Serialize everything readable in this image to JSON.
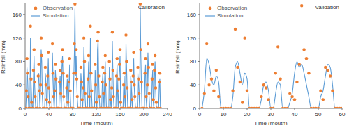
{
  "chart_data": [
    {
      "type": "line",
      "title": "Calibration",
      "x_label": "Time (mouth)",
      "y_label": "Rainfall (mm)",
      "legend": "top-left",
      "xlim": [
        0,
        240
      ],
      "xticks": [
        0,
        40,
        80,
        120,
        160,
        200,
        240
      ],
      "ylim": [
        0,
        180
      ],
      "yticks": [
        0,
        40,
        80,
        120,
        160
      ],
      "x": [
        1,
        2,
        3,
        4,
        5,
        6,
        7,
        8,
        9,
        10,
        11,
        12,
        13,
        14,
        15,
        16,
        17,
        18,
        19,
        20,
        21,
        22,
        23,
        24,
        25,
        26,
        27,
        28,
        29,
        30,
        31,
        32,
        33,
        34,
        35,
        36,
        37,
        38,
        39,
        40,
        41,
        42,
        43,
        44,
        45,
        46,
        47,
        48,
        49,
        50,
        51,
        52,
        53,
        54,
        55,
        56,
        57,
        58,
        59,
        60,
        61,
        62,
        63,
        64,
        65,
        66,
        67,
        68,
        69,
        70,
        71,
        72,
        73,
        74,
        75,
        76,
        77,
        78,
        79,
        80,
        81,
        82,
        83,
        84,
        85,
        86,
        87,
        88,
        89,
        90,
        91,
        92,
        93,
        94,
        95,
        96,
        97,
        98,
        99,
        100,
        101,
        102,
        103,
        104,
        105,
        106,
        107,
        108,
        109,
        110,
        111,
        112,
        113,
        114,
        115,
        116,
        117,
        118,
        119,
        120,
        121,
        122,
        123,
        124,
        125,
        126,
        127,
        128,
        129,
        130,
        131,
        132,
        133,
        134,
        135,
        136,
        137,
        138,
        139,
        140,
        141,
        142,
        143,
        144,
        145,
        146,
        147,
        148,
        149,
        150,
        151,
        152,
        153,
        154,
        155,
        156,
        157,
        158,
        159,
        160,
        161,
        162,
        163,
        164,
        165,
        166,
        167,
        168,
        169,
        170,
        171,
        172,
        173,
        174,
        175,
        176,
        177,
        178,
        179,
        180,
        181,
        182,
        183,
        184,
        185,
        186,
        187,
        188,
        189,
        190,
        191,
        192,
        193,
        194,
        195,
        196,
        197,
        198,
        199,
        200,
        201,
        202,
        203,
        204,
        205,
        206,
        207,
        208,
        209,
        210,
        211,
        212,
        213,
        214,
        215,
        216,
        217,
        218,
        219,
        220,
        221,
        222,
        223,
        224,
        225,
        226,
        227,
        228
      ],
      "series": [
        {
          "name": "Observation",
          "type": "scatter",
          "marker": "circle",
          "color": "#ed7d31",
          "values": [
            0,
            30,
            85,
            60,
            20,
            0,
            0,
            0,
            140,
            50,
            10,
            0,
            0,
            65,
            100,
            45,
            20,
            0,
            0,
            0,
            0,
            55,
            75,
            30,
            0,
            40,
            120,
            90,
            25,
            0,
            0,
            0,
            0,
            70,
            40,
            15,
            0,
            55,
            95,
            35,
            10,
            0,
            0,
            0,
            0,
            110,
            60,
            20,
            0,
            30,
            75,
            50,
            0,
            0,
            0,
            0,
            0,
            45,
            65,
            25,
            0,
            80,
            100,
            60,
            20,
            0,
            0,
            0,
            0,
            35,
            55,
            10,
            0,
            45,
            85,
            30,
            0,
            0,
            0,
            0,
            0,
            60,
            110,
            178,
            60,
            100,
            50,
            20,
            0,
            0,
            0,
            0,
            0,
            70,
            45,
            15,
            0,
            35,
            120,
            80,
            25,
            0,
            0,
            0,
            0,
            50,
            90,
            20,
            0,
            140,
            60,
            30,
            0,
            0,
            0,
            0,
            0,
            75,
            40,
            10,
            0,
            115,
            130,
            55,
            20,
            0,
            0,
            0,
            0,
            45,
            70,
            25,
            0,
            60,
            90,
            40,
            0,
            0,
            0,
            0,
            0,
            80,
            50,
            15,
            0,
            35,
            130,
            65,
            20,
            0,
            0,
            0,
            0,
            55,
            85,
            30,
            0,
            50,
            75,
            100,
            10,
            0,
            0,
            0,
            0,
            40,
            60,
            20,
            0,
            125,
            80,
            35,
            0,
            0,
            0,
            0,
            0,
            65,
            45,
            15,
            0,
            55,
            95,
            40,
            20,
            0,
            0,
            0,
            0,
            70,
            50,
            25,
            0,
            178,
            100,
            45,
            0,
            0,
            0,
            0,
            0,
            60,
            85,
            20,
            0,
            40,
            110,
            70,
            25,
            0,
            0,
            0,
            0,
            50,
            75,
            15,
            0,
            65,
            90,
            35,
            10,
            0,
            0,
            0,
            0,
            45,
            60,
            0
          ]
        },
        {
          "name": "Simulation",
          "type": "line",
          "line_style": "solid",
          "color": "#5b9bd5",
          "values": [
            0,
            20,
            70,
            55,
            25,
            0,
            0,
            0,
            120,
            45,
            15,
            0,
            0,
            50,
            90,
            40,
            15,
            0,
            0,
            0,
            0,
            45,
            60,
            25,
            0,
            35,
            100,
            80,
            20,
            0,
            0,
            0,
            0,
            60,
            45,
            10,
            0,
            45,
            85,
            40,
            5,
            0,
            0,
            0,
            0,
            95,
            55,
            15,
            0,
            25,
            65,
            45,
            0,
            0,
            0,
            0,
            0,
            40,
            55,
            20,
            0,
            70,
            90,
            50,
            15,
            0,
            0,
            0,
            0,
            30,
            50,
            5,
            0,
            40,
            75,
            25,
            0,
            0,
            0,
            0,
            0,
            50,
            95,
            170,
            55,
            90,
            45,
            15,
            0,
            0,
            0,
            0,
            0,
            60,
            40,
            10,
            0,
            30,
            105,
            70,
            20,
            0,
            0,
            0,
            0,
            45,
            80,
            15,
            0,
            120,
            55,
            25,
            0,
            0,
            0,
            0,
            0,
            65,
            35,
            5,
            0,
            100,
            115,
            50,
            15,
            0,
            0,
            0,
            0,
            40,
            60,
            20,
            0,
            50,
            80,
            35,
            0,
            0,
            0,
            0,
            0,
            70,
            45,
            10,
            0,
            30,
            115,
            60,
            15,
            0,
            0,
            0,
            0,
            50,
            75,
            25,
            0,
            45,
            65,
            90,
            5,
            0,
            0,
            0,
            0,
            35,
            55,
            15,
            0,
            110,
            70,
            30,
            0,
            0,
            0,
            0,
            0,
            55,
            40,
            10,
            0,
            50,
            85,
            35,
            15,
            0,
            0,
            0,
            0,
            60,
            45,
            20,
            0,
            175,
            90,
            40,
            0,
            0,
            0,
            0,
            0,
            55,
            75,
            15,
            0,
            35,
            95,
            60,
            20,
            0,
            0,
            0,
            0,
            45,
            65,
            10,
            0,
            55,
            80,
            30,
            5,
            0,
            0,
            0,
            0,
            40,
            50,
            0
          ]
        }
      ]
    },
    {
      "type": "line",
      "title": "Validation",
      "x_label": "Time (mouth)",
      "y_label": "Rainfall (mm)",
      "legend": "top-left",
      "xlim": [
        0,
        60
      ],
      "xticks": [
        0,
        10,
        20,
        30,
        40,
        50,
        60
      ],
      "ylim": [
        0,
        180
      ],
      "yticks": [
        0,
        40,
        80,
        120,
        160
      ],
      "x": [
        1,
        2,
        3,
        4,
        5,
        6,
        7,
        8,
        9,
        10,
        11,
        12,
        13,
        14,
        15,
        16,
        17,
        18,
        19,
        20,
        21,
        22,
        23,
        24,
        25,
        26,
        27,
        28,
        29,
        30,
        31,
        32,
        33,
        34,
        35,
        36,
        37,
        38,
        39,
        40,
        41,
        42,
        43,
        44,
        45,
        46,
        47,
        48,
        49,
        50,
        51,
        52,
        53,
        54,
        55,
        56,
        57,
        58,
        59,
        60
      ],
      "series": [
        {
          "name": "Observation",
          "type": "scatter",
          "marker": "circle",
          "color": "#ed7d31",
          "values": [
            0,
            25,
            110,
            40,
            50,
            30,
            65,
            20,
            0,
            0,
            0,
            0,
            0,
            30,
            135,
            70,
            45,
            10,
            120,
            30,
            0,
            0,
            0,
            0,
            0,
            20,
            40,
            35,
            15,
            0,
            0,
            60,
            105,
            50,
            0,
            0,
            0,
            25,
            20,
            15,
            45,
            75,
            175,
            100,
            85,
            60,
            0,
            0,
            0,
            0,
            30,
            15,
            70,
            65,
            55,
            30,
            0,
            0,
            0,
            0
          ]
        },
        {
          "name": "Simulation",
          "type": "line",
          "line_style": "smooth",
          "color": "#5b9bd5",
          "values": [
            0,
            30,
            85,
            75,
            50,
            40,
            55,
            45,
            0,
            0,
            0,
            0,
            0,
            20,
            70,
            80,
            60,
            40,
            60,
            50,
            0,
            0,
            0,
            0,
            0,
            15,
            40,
            45,
            30,
            0,
            0,
            25,
            45,
            40,
            0,
            0,
            0,
            10,
            25,
            60,
            80,
            70,
            75,
            60,
            40,
            20,
            0,
            0,
            0,
            0,
            20,
            30,
            55,
            75,
            70,
            40,
            0,
            0,
            0,
            0
          ]
        }
      ]
    }
  ]
}
